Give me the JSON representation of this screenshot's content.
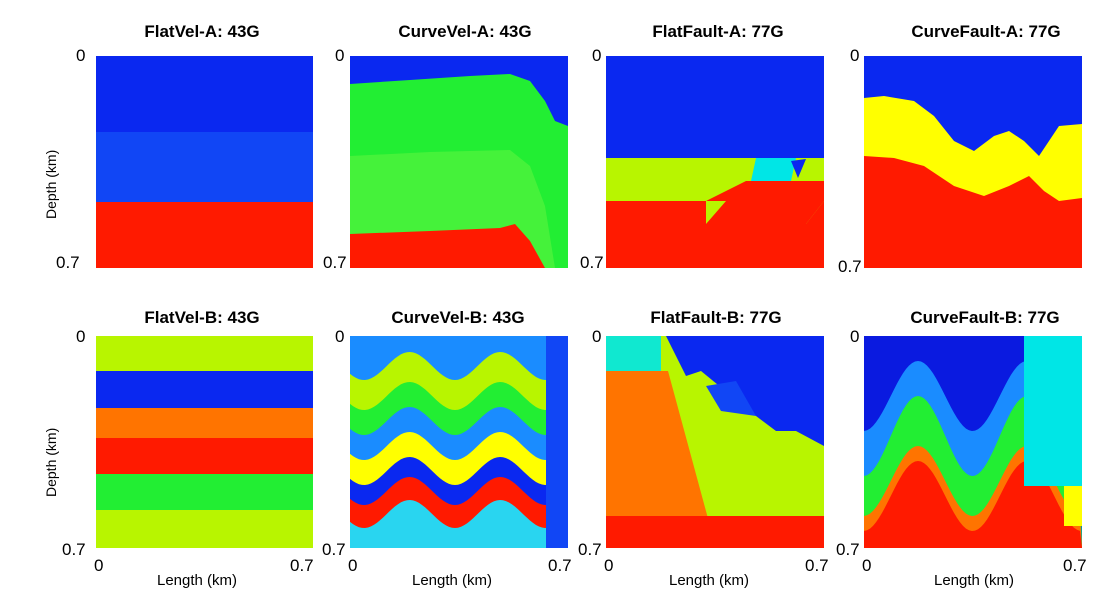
{
  "colors": {
    "blue": "#0a28f0",
    "blue2": "#1146f5",
    "red": "#ff1a00",
    "green": "#22ee33",
    "green2": "#45f23a",
    "lime": "#b8f500",
    "yellow": "#ffff00",
    "orange": "#ff7400",
    "cyan": "#00e6e6",
    "skyblue": "#1a8cff",
    "lightblue": "#29d5f0",
    "navy": "#0a1ae0",
    "aqua": "#10e8d0"
  },
  "chart_data": [
    {
      "type": "heatmap",
      "title": "FlatVel-A: 43G",
      "description": "flat layers",
      "layers": [
        "blue",
        "blue2",
        "red"
      ],
      "xlabel": "",
      "ylabel": "Depth (km)",
      "xlim": [
        0,
        0.7
      ],
      "ylim": [
        0,
        0.7
      ]
    },
    {
      "type": "heatmap",
      "title": "CurveVel-A: 43G",
      "layers": [
        "blue",
        "green",
        "green2",
        "red"
      ],
      "xlabel": "",
      "ylabel": "",
      "xlim": [
        0,
        0.7
      ],
      "ylim": [
        0,
        0.7
      ]
    },
    {
      "type": "heatmap",
      "title": "FlatFault-A: 77G",
      "layers": [
        "blue",
        "lime",
        "red"
      ],
      "xlabel": "",
      "ylabel": "",
      "xlim": [
        0,
        0.7
      ],
      "ylim": [
        0,
        0.7
      ]
    },
    {
      "type": "heatmap",
      "title": "CurveFault-A: 77G",
      "layers": [
        "blue",
        "yellow",
        "red"
      ],
      "xlabel": "",
      "ylabel": "",
      "xlim": [
        0,
        0.7
      ],
      "ylim": [
        0,
        0.7
      ]
    },
    {
      "type": "heatmap",
      "title": "FlatVel-B: 43G",
      "layers": [
        "lime",
        "blue",
        "orange",
        "red",
        "green",
        "lime"
      ],
      "xlabel": "Length (km)",
      "ylabel": "Depth (km)",
      "xlim": [
        0,
        0.7
      ],
      "ylim": [
        0,
        0.7
      ]
    },
    {
      "type": "heatmap",
      "title": "CurveVel-B: 43G",
      "layers": [
        "skyblue",
        "lime",
        "green",
        "yellow",
        "blue",
        "red",
        "lightblue"
      ],
      "xlabel": "Length (km)",
      "ylabel": "",
      "xlim": [
        0,
        0.7
      ],
      "ylim": [
        0,
        0.7
      ]
    },
    {
      "type": "heatmap",
      "title": "FlatFault-B: 77G",
      "layers": [
        "aqua",
        "blue",
        "orange",
        "lime",
        "red"
      ],
      "xlabel": "Length (km)",
      "ylabel": "",
      "xlim": [
        0,
        0.7
      ],
      "ylim": [
        0,
        0.7
      ]
    },
    {
      "type": "heatmap",
      "title": "CurveFault-B: 77G",
      "layers": [
        "navy",
        "skyblue",
        "cyan",
        "green",
        "orange",
        "red",
        "yellow"
      ],
      "xlabel": "Length (km)",
      "ylabel": "",
      "xlim": [
        0,
        0.7
      ],
      "ylim": [
        0,
        0.7
      ]
    }
  ],
  "labels": {
    "panels": [
      "FlatVel-A: 43G",
      "CurveVel-A: 43G",
      "FlatFault-A: 77G",
      "CurveFault-A: 77G",
      "FlatVel-B: 43G",
      "CurveVel-B: 43G",
      "FlatFault-B: 77G",
      "CurveFault-B: 77G"
    ],
    "depth_label": "Depth (km)",
    "length_label": "Length (km)",
    "tick_zero": "0",
    "tick_max": "0.7"
  }
}
